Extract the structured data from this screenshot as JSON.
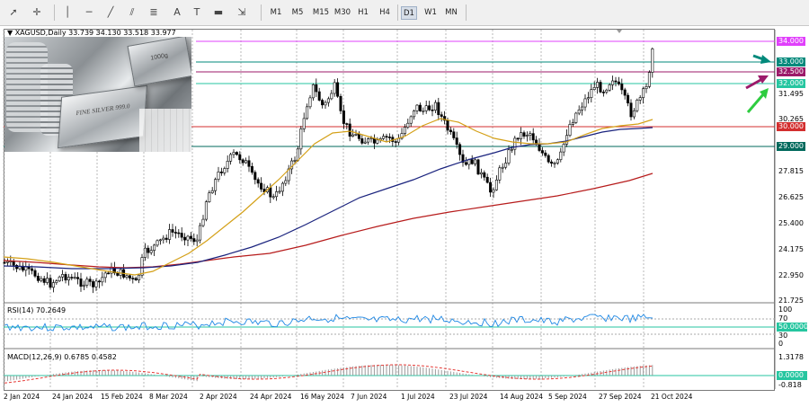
{
  "toolbar": {
    "timeframes": [
      "M1",
      "M5",
      "M15",
      "M30",
      "H1",
      "H4",
      "D1",
      "W1",
      "MN"
    ],
    "active_timeframe": "D1"
  },
  "symbol_info": "XAGUSD,Daily  33.739 34.130 33.518 33.977",
  "levels": {
    "l34": {
      "label": "34.000",
      "color": "#e040fb"
    },
    "l33": {
      "label": "33.000",
      "color": "#00897b"
    },
    "l325": {
      "label": "32.500",
      "color": "#9c1a6a"
    },
    "l32": {
      "label": "32.000",
      "color": "#26c6a0"
    },
    "l30": {
      "label": "30.000",
      "color": "#d32f2f"
    },
    "l29": {
      "label": "29.000",
      "color": "#00695c"
    }
  },
  "price_axis": [
    "31.495",
    "30.265",
    "27.815",
    "26.625",
    "25.400",
    "24.175",
    "22.950",
    "21.725"
  ],
  "rsi": {
    "title": "RSI(14) 70.2649",
    "ticks": [
      "100",
      "70",
      "30",
      "0"
    ],
    "level_tag": "50.0000"
  },
  "macd": {
    "title": "MACD(12,26,9) 0.6785 0.4582",
    "ticks": [
      "1.3178",
      "-0.818"
    ],
    "level_tag": "0.0000"
  },
  "date_axis": [
    "2 Jan 2024",
    "24 Jan 2024",
    "15 Feb 2024",
    "8 Mar 2024",
    "2 Apr 2024",
    "24 Apr 2024",
    "16 May 2024",
    "7 Jun 2024",
    "1 Jul 2024",
    "23 Jul 2024",
    "14 Aug 2024",
    "5 Sep 2024",
    "27 Sep 2024",
    "21 Oct 2024"
  ],
  "colors": {
    "ma_fast": "#d4a017",
    "ma_mid": "#1a237e",
    "ma_slow": "#b71c1c",
    "rsi_line": "#1e88e5",
    "macd_signal": "#e53935",
    "arrow_teal": "#00897b",
    "arrow_purple": "#9c1a6a",
    "arrow_green": "#2ecc40"
  },
  "thumbnail": {
    "caption": "FINE SILVER 999.0",
    "bar_text": "1000g"
  }
}
